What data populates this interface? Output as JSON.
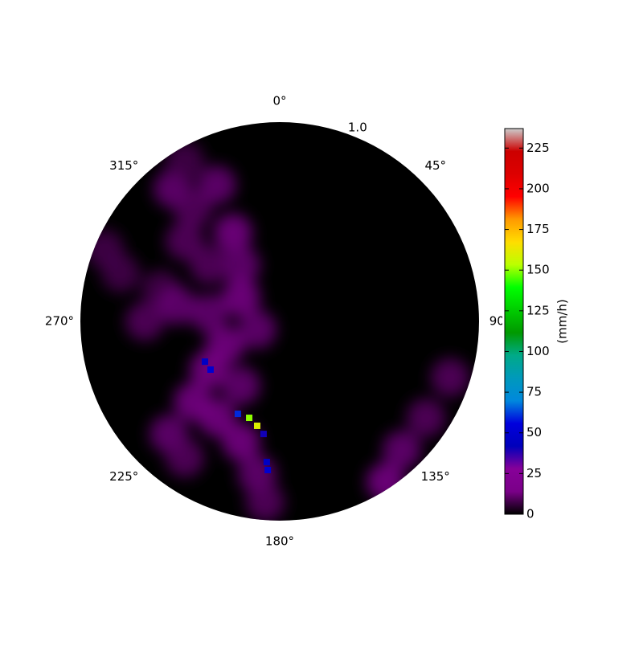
{
  "chart_data": {
    "type": "polar-heatmap",
    "theta_zero": "N",
    "theta_direction": "clockwise",
    "rlim": [
      0,
      1
    ],
    "rticks": [
      {
        "value": 1,
        "label": "1.0"
      }
    ],
    "rlabel_angle": 22.5,
    "thetaticks": [
      {
        "value": 0,
        "label": "0°"
      },
      {
        "value": 45,
        "label": "45°"
      },
      {
        "value": 90,
        "label": "90°"
      },
      {
        "value": 135,
        "label": "135°"
      },
      {
        "value": 180,
        "label": "180°"
      },
      {
        "value": 225,
        "label": "225°"
      },
      {
        "value": 270,
        "label": "270°"
      },
      {
        "value": 315,
        "label": "315°"
      }
    ],
    "background": "#000000",
    "colormap": [
      "#000000",
      "#7a0088",
      "#870099",
      "#0000bb",
      "#0000dd",
      "#0088dd",
      "#0099bb",
      "#00aa88",
      "#009900",
      "#00cc00",
      "#00ff00",
      "#bbff00",
      "#ffdd00",
      "#ff9900",
      "#ff0000",
      "#dd0000",
      "#cc0000",
      "#cccccc"
    ],
    "x": [
      -0.536,
      -0.435,
      -0.315,
      -0.234,
      -0.194,
      -0.355,
      -0.476,
      -0.597,
      -0.798,
      -0.677,
      -0.516,
      -0.355,
      -0.194,
      -0.113,
      -0.274,
      -0.355,
      -0.435,
      -0.556,
      -0.476,
      -0.315,
      -0.194,
      -0.194,
      -0.113,
      -0.073,
      0.613,
      0.734,
      0.855,
      0.532,
      -0.879,
      -0.476,
      -0.375,
      -0.347,
      -0.21,
      -0.153,
      -0.113,
      -0.081,
      -0.065,
      -0.06
    ],
    "y": [
      0.665,
      0.565,
      0.685,
      0.444,
      0.282,
      0.282,
      0.403,
      0.161,
      0.242,
      0,
      0.081,
      0.04,
      0.121,
      -0.04,
      -0.121,
      -0.242,
      -0.403,
      -0.565,
      -0.685,
      -0.484,
      -0.323,
      -0.605,
      -0.766,
      -0.907,
      -0.645,
      -0.484,
      -0.282,
      -0.806,
      0.363,
      0.806,
      -0.202,
      -0.242,
      -0.464,
      -0.484,
      -0.524,
      -0.565,
      -0.706,
      -0.746
    ],
    "values": [
      12,
      10,
      12,
      14,
      12,
      10,
      10,
      8,
      8,
      10,
      12,
      12,
      14,
      12,
      14,
      16,
      14,
      12,
      10,
      14,
      12,
      14,
      12,
      10,
      12,
      10,
      10,
      14,
      8,
      8,
      45,
      50,
      60,
      150,
      160,
      40,
      45,
      50
    ],
    "colorbar": {
      "label": "(mm/h)",
      "ylim": [
        0,
        237
      ],
      "yticks": [
        0,
        25,
        50,
        75,
        100,
        125,
        150,
        175,
        200,
        225
      ]
    }
  }
}
